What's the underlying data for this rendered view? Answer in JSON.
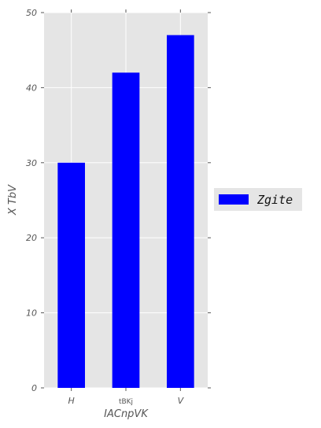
{
  "chart_data": {
    "type": "bar",
    "categories": [
      "H",
      "tBKj",
      "V"
    ],
    "series": [
      {
        "name": "Zgite",
        "values": [
          30,
          42,
          47
        ],
        "color": "#0000ff"
      }
    ],
    "xlabel": "IACnpVK",
    "ylabel": "X   TbV",
    "ylim": [
      0,
      50
    ],
    "yticks": [
      0,
      10,
      20,
      30,
      40,
      50
    ],
    "ytick_labels": [
      "0",
      "10",
      "20",
      "30",
      "40",
      "50"
    ],
    "grid": true,
    "legend": {
      "placement": "right",
      "entries": [
        "Zgite"
      ]
    },
    "style": {
      "plot_background": "#e5e5e5",
      "grid_color": "#ffffff"
    }
  }
}
